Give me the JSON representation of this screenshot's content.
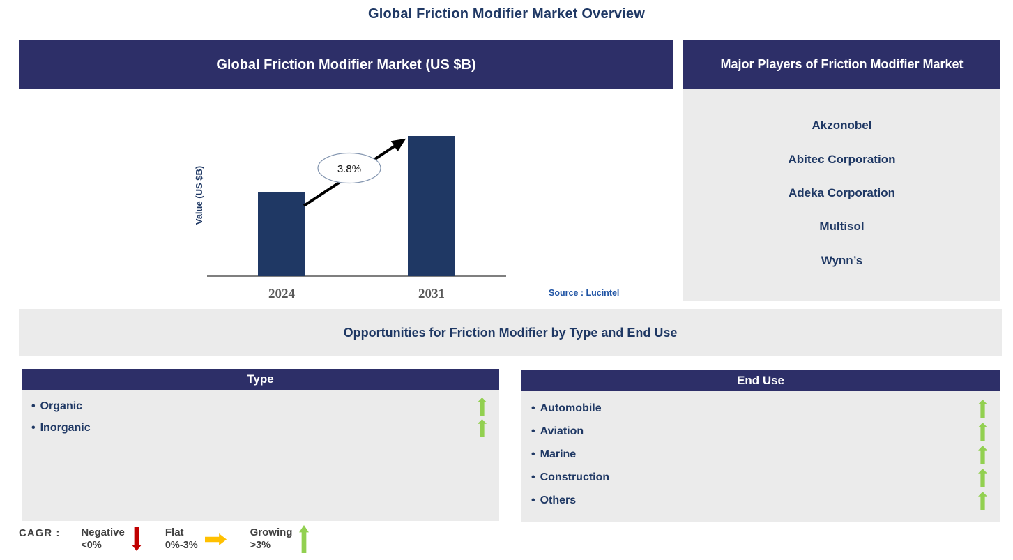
{
  "page": {
    "title": "Global Friction Modifier Market Overview"
  },
  "chart": {
    "header": "Global Friction Modifier Market (US $B)",
    "ylabel": "Value (US $B)",
    "source": "Source : Lucintel"
  },
  "chart_data": {
    "type": "bar",
    "title": "Global Friction Modifier Market (US $B)",
    "categories": [
      "2024",
      "2031"
    ],
    "values_relative": [
      0.6,
      1.0
    ],
    "value_axis_labeled": false,
    "xlabel": "",
    "ylabel": "Value (US $B)",
    "cagr": "3.8%",
    "annotation": "Arrow from 2024 bar to 2031 bar labeled 3.8% CAGR",
    "bar_color": "#1F3864",
    "grid": false,
    "legend": false
  },
  "players": {
    "header": "Major Players of Friction Modifier Market",
    "companies": [
      "Akzonobel",
      "Abitec Corporation",
      "Adeka Corporation",
      "Multisol",
      "Wynn’s"
    ]
  },
  "opportunities": {
    "title": "Opportunities for Friction Modifier by Type and End Use",
    "panels": [
      {
        "header": "Type",
        "items": [
          {
            "label": "Organic",
            "trend": "growing"
          },
          {
            "label": "Inorganic",
            "trend": "growing"
          }
        ]
      },
      {
        "header": "End Use",
        "items": [
          {
            "label": "Automobile",
            "trend": "growing"
          },
          {
            "label": "Aviation",
            "trend": "growing"
          },
          {
            "label": "Marine",
            "trend": "growing"
          },
          {
            "label": "Construction",
            "trend": "growing"
          },
          {
            "label": "Others",
            "trend": "growing"
          }
        ]
      }
    ]
  },
  "legend": {
    "title": "CAGR :",
    "items": [
      {
        "label": "Negative",
        "range": "<0%",
        "arrow": "down",
        "color": "#C00000"
      },
      {
        "label": "Flat",
        "range": "0%-3%",
        "arrow": "right",
        "color": "#FFC000"
      },
      {
        "label": "Growing",
        "range": ">3%",
        "arrow": "up",
        "color": "#92D050"
      }
    ]
  },
  "colors": {
    "header_navy": "#2D2F68",
    "bar_navy": "#1F3864",
    "text_navy": "#1F3864",
    "panel_gray": "#EBEBEB",
    "axis_label_gray": "#595959",
    "legend_text_gray": "#404040",
    "source_blue": "#2155A5",
    "growing_green": "#92D050",
    "negative_red": "#C00000",
    "flat_yellow": "#FFC000"
  }
}
